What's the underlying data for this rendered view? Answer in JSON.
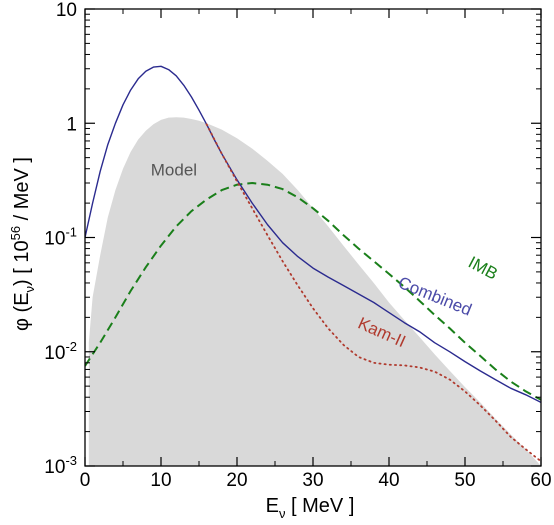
{
  "chart_data": {
    "type": "line",
    "title": "",
    "xlabel": {
      "main": "E",
      "sub": "ν",
      "tail": "  [ MeV ]"
    },
    "ylabel": {
      "main": "φ (E",
      "sub": "ν",
      "mid": ")  [ 10",
      "sup": "56",
      "tail": " / MeV ]"
    },
    "xlim": [
      0,
      60
    ],
    "ylim": [
      0.001,
      10
    ],
    "yscale": "log",
    "grid": false,
    "legend": "none",
    "x_ticks": [
      {
        "value": 0,
        "label": "0"
      },
      {
        "value": 10,
        "label": "10"
      },
      {
        "value": 20,
        "label": "20"
      },
      {
        "value": 30,
        "label": "30"
      },
      {
        "value": 40,
        "label": "40"
      },
      {
        "value": 50,
        "label": "50"
      },
      {
        "value": 60,
        "label": "60"
      }
    ],
    "y_ticks": [
      {
        "value": 0.001,
        "base": "10",
        "exp": "-3"
      },
      {
        "value": 0.01,
        "base": "10",
        "exp": "-2"
      },
      {
        "value": 0.1,
        "base": "10",
        "exp": "-1"
      },
      {
        "value": 1,
        "base": "1",
        "exp": ""
      },
      {
        "value": 10,
        "base": "10",
        "exp": ""
      }
    ],
    "series": [
      {
        "name": "Model",
        "style": "filled-area",
        "color": "#d9d9d9",
        "x": [
          0.5,
          1,
          2,
          3,
          4,
          5,
          6,
          7,
          8,
          9,
          10,
          11,
          12,
          13,
          14,
          15,
          16,
          18,
          20,
          22,
          24,
          26,
          28,
          30,
          32,
          34,
          36,
          38,
          40,
          42,
          44,
          46,
          48,
          50,
          52,
          54,
          56,
          58,
          60
        ],
        "y": [
          0.012,
          0.03,
          0.07,
          0.15,
          0.26,
          0.4,
          0.56,
          0.72,
          0.86,
          0.98,
          1.07,
          1.12,
          1.13,
          1.12,
          1.09,
          1.05,
          1.0,
          0.88,
          0.74,
          0.6,
          0.47,
          0.36,
          0.26,
          0.18,
          0.125,
          0.085,
          0.058,
          0.04,
          0.027,
          0.019,
          0.0135,
          0.0095,
          0.0068,
          0.0049,
          0.0036,
          0.0026,
          0.0019,
          0.0014,
          0.001
        ]
      },
      {
        "name": "IMB",
        "style": "dashed",
        "color": "#1a7f1a",
        "x": [
          0,
          1,
          2,
          4,
          6,
          8,
          10,
          12,
          14,
          16,
          18,
          20,
          22,
          24,
          26,
          28,
          30,
          32,
          34,
          36,
          38,
          40,
          42,
          44,
          46,
          48,
          50,
          52,
          54,
          56,
          58,
          60
        ],
        "y": [
          0.0075,
          0.0095,
          0.012,
          0.02,
          0.034,
          0.055,
          0.085,
          0.125,
          0.17,
          0.215,
          0.26,
          0.29,
          0.3,
          0.29,
          0.265,
          0.225,
          0.18,
          0.14,
          0.105,
          0.08,
          0.062,
          0.048,
          0.037,
          0.028,
          0.021,
          0.016,
          0.012,
          0.0092,
          0.007,
          0.0055,
          0.0045,
          0.0038
        ]
      },
      {
        "name": "Combined",
        "style": "solid",
        "color": "#2b2b8f",
        "x": [
          0,
          1,
          2,
          3,
          4,
          5,
          6,
          7,
          8,
          9,
          10,
          11,
          12,
          13,
          14,
          15,
          16,
          17,
          18,
          20,
          22,
          24,
          26,
          28,
          30,
          32,
          34,
          36,
          38,
          40,
          42,
          44,
          46,
          48,
          50,
          52,
          54,
          56,
          58,
          60
        ],
        "y": [
          0.1,
          0.2,
          0.38,
          0.65,
          1.0,
          1.45,
          1.95,
          2.45,
          2.85,
          3.1,
          3.15,
          2.95,
          2.6,
          2.15,
          1.7,
          1.3,
          0.98,
          0.72,
          0.54,
          0.32,
          0.2,
          0.13,
          0.09,
          0.068,
          0.054,
          0.045,
          0.038,
          0.032,
          0.027,
          0.022,
          0.018,
          0.015,
          0.012,
          0.01,
          0.0082,
          0.0068,
          0.0057,
          0.0048,
          0.0042,
          0.0036
        ]
      },
      {
        "name": "Kam-II",
        "style": "dotted",
        "color": "#b03a2e",
        "x": [
          16,
          18,
          20,
          22,
          24,
          26,
          28,
          30,
          32,
          34,
          36,
          38,
          40,
          42,
          44,
          46,
          48,
          50,
          52,
          54,
          56,
          58,
          60
        ],
        "y": [
          0.98,
          0.54,
          0.31,
          0.18,
          0.105,
          0.062,
          0.038,
          0.024,
          0.016,
          0.0115,
          0.009,
          0.008,
          0.0077,
          0.0076,
          0.0073,
          0.0067,
          0.0057,
          0.0045,
          0.0034,
          0.0025,
          0.0018,
          0.0014,
          0.0011
        ]
      }
    ],
    "annotations": [
      {
        "text": "Model",
        "x": 11.7,
        "y": 0.38,
        "color": "#555555",
        "rotate": 0
      },
      {
        "text": "IMB",
        "x": 52.3,
        "y": 0.053,
        "color": "#1a7f1a",
        "rotate": 28
      },
      {
        "text": "Combined",
        "x": 46.0,
        "y": 0.03,
        "color": "#4b4ba8",
        "rotate": 22
      },
      {
        "text": "Kam-II",
        "x": 39.0,
        "y": 0.0145,
        "color": "#b03a2e",
        "rotate": 24
      }
    ]
  }
}
